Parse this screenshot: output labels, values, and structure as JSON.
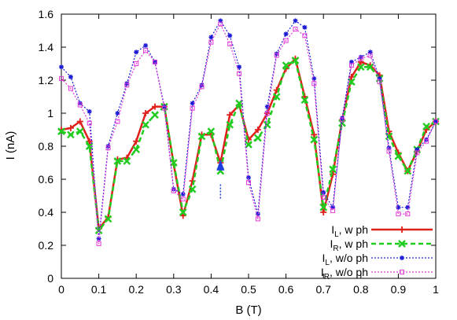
{
  "chart_data": {
    "type": "line",
    "xlabel": "B (T)",
    "ylabel": "I (nA)",
    "xlim": [
      0,
      1
    ],
    "ylim": [
      0,
      1.6
    ],
    "x_ticks": [
      "0",
      "0.1",
      "0.2",
      "0.3",
      "0.4",
      "0.5",
      "0.6",
      "0.7",
      "0.8",
      "0.9",
      "1"
    ],
    "y_ticks": [
      "0",
      "0.2",
      "0.4",
      "0.6",
      "0.8",
      "1",
      "1.2",
      "1.4",
      "1.6"
    ],
    "grid": false,
    "legend_position": "bottom-right",
    "annotation": {
      "type": "arrow",
      "x": 0.425,
      "y_from": 0.55,
      "y_to": 0.72,
      "color": "#1f3fe0"
    },
    "series": [
      {
        "name_main": "I",
        "name_sub": "L",
        "name_suffix": ", w ph",
        "color": "#e0201c",
        "dash": "solid",
        "marker": "plus",
        "width": 2.5,
        "x": [
          0,
          0.025,
          0.05,
          0.075,
          0.1,
          0.125,
          0.15,
          0.175,
          0.2,
          0.225,
          0.25,
          0.275,
          0.3,
          0.325,
          0.35,
          0.375,
          0.4,
          0.425,
          0.45,
          0.475,
          0.5,
          0.525,
          0.55,
          0.575,
          0.6,
          0.625,
          0.65,
          0.675,
          0.7,
          0.725,
          0.75,
          0.775,
          0.8,
          0.825,
          0.85,
          0.875,
          0.9,
          0.925,
          0.95,
          0.975,
          1
        ],
        "y": [
          0.9,
          0.91,
          0.95,
          0.83,
          0.3,
          0.37,
          0.72,
          0.73,
          0.83,
          1.0,
          1.04,
          1.04,
          0.69,
          0.38,
          0.59,
          0.87,
          0.87,
          0.7,
          0.99,
          1.05,
          0.84,
          0.9,
          1.0,
          1.14,
          1.27,
          1.33,
          1.1,
          0.87,
          0.4,
          0.63,
          0.96,
          1.22,
          1.31,
          1.29,
          1.23,
          0.89,
          0.76,
          0.65,
          0.77,
          0.9,
          0.95
        ]
      },
      {
        "name_main": "I",
        "name_sub": "R",
        "name_suffix": ", w ph",
        "color": "#1fcc1f",
        "dash": "dashed",
        "marker": "cross",
        "width": 2.5,
        "x": [
          0,
          0.025,
          0.05,
          0.075,
          0.1,
          0.125,
          0.15,
          0.175,
          0.2,
          0.225,
          0.25,
          0.275,
          0.3,
          0.325,
          0.35,
          0.375,
          0.4,
          0.425,
          0.45,
          0.475,
          0.5,
          0.525,
          0.55,
          0.575,
          0.6,
          0.625,
          0.65,
          0.675,
          0.7,
          0.725,
          0.75,
          0.775,
          0.8,
          0.825,
          0.85,
          0.875,
          0.9,
          0.925,
          0.95,
          0.975,
          1
        ],
        "y": [
          0.89,
          0.87,
          0.89,
          0.8,
          0.29,
          0.36,
          0.71,
          0.71,
          0.78,
          0.93,
          0.99,
          1.04,
          0.7,
          0.4,
          0.54,
          0.86,
          0.89,
          0.65,
          0.93,
          1.06,
          0.81,
          0.85,
          0.93,
          1.1,
          1.29,
          1.32,
          1.08,
          0.84,
          0.43,
          0.66,
          0.94,
          1.19,
          1.28,
          1.28,
          1.21,
          0.86,
          0.74,
          0.65,
          0.78,
          0.92,
          0.95
        ]
      },
      {
        "name_main": "I",
        "name_sub": "L",
        "name_suffix": ", w/o ph",
        "color": "#1a1ad6",
        "dash": "dotted",
        "marker": "star",
        "width": 1.2,
        "x": [
          0,
          0.025,
          0.05,
          0.075,
          0.1,
          0.125,
          0.15,
          0.175,
          0.2,
          0.225,
          0.25,
          0.275,
          0.3,
          0.325,
          0.35,
          0.375,
          0.4,
          0.425,
          0.45,
          0.475,
          0.5,
          0.525,
          0.55,
          0.575,
          0.6,
          0.625,
          0.65,
          0.675,
          0.7,
          0.725,
          0.75,
          0.775,
          0.8,
          0.825,
          0.85,
          0.875,
          0.9,
          0.925,
          0.95,
          0.975,
          1
        ],
        "y": [
          1.28,
          1.22,
          1.06,
          1.01,
          0.24,
          0.8,
          1.0,
          1.18,
          1.37,
          1.41,
          1.31,
          1.04,
          0.54,
          0.51,
          1.06,
          1.17,
          1.46,
          1.56,
          1.47,
          1.28,
          0.61,
          0.39,
          1.04,
          1.36,
          1.48,
          1.56,
          1.52,
          1.21,
          0.52,
          0.43,
          0.97,
          1.31,
          1.34,
          1.37,
          1.21,
          0.79,
          0.43,
          0.43,
          0.78,
          0.84,
          0.95
        ]
      },
      {
        "name_main": "I",
        "name_sub": "R",
        "name_suffix": ", w/o ph",
        "color": "#e03ad8",
        "dash": "dotted",
        "marker": "square",
        "width": 1.2,
        "x": [
          0,
          0.025,
          0.05,
          0.075,
          0.1,
          0.125,
          0.15,
          0.175,
          0.2,
          0.225,
          0.25,
          0.275,
          0.3,
          0.325,
          0.35,
          0.375,
          0.4,
          0.425,
          0.45,
          0.475,
          0.5,
          0.525,
          0.55,
          0.575,
          0.6,
          0.625,
          0.65,
          0.675,
          0.7,
          0.725,
          0.75,
          0.775,
          0.8,
          0.825,
          0.85,
          0.875,
          0.9,
          0.925,
          0.95,
          0.975,
          1
        ],
        "y": [
          1.21,
          1.15,
          1.05,
          0.94,
          0.21,
          0.79,
          0.95,
          1.17,
          1.3,
          1.38,
          1.31,
          1.03,
          0.53,
          0.48,
          1.03,
          1.16,
          1.43,
          1.54,
          1.42,
          1.24,
          0.58,
          0.36,
          1.0,
          1.35,
          1.44,
          1.51,
          1.47,
          1.18,
          0.49,
          0.41,
          0.96,
          1.29,
          1.33,
          1.35,
          1.19,
          0.77,
          0.39,
          0.39,
          0.76,
          0.83,
          0.95
        ]
      }
    ]
  }
}
